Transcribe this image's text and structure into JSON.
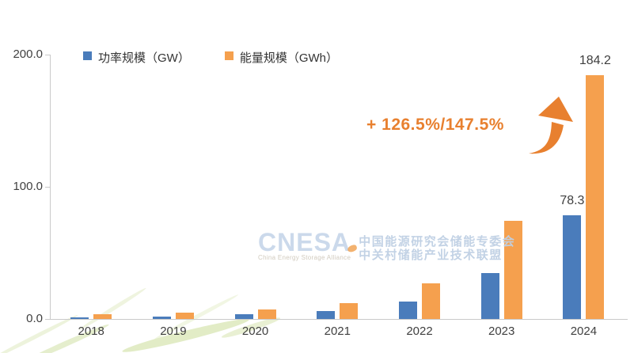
{
  "chart_data": {
    "type": "bar",
    "title": "",
    "categories": [
      "2018",
      "2019",
      "2020",
      "2021",
      "2022",
      "2023",
      "2024"
    ],
    "series": [
      {
        "name": "功率规模（GW）",
        "color": "#4a7cbb",
        "values": [
          1.1,
          2.0,
          3.3,
          5.7,
          13.1,
          34.5,
          78.3
        ]
      },
      {
        "name": "能量规模（GWh）",
        "color": "#f5a04e",
        "values": [
          3.4,
          4.9,
          7.0,
          11.8,
          27.1,
          74.5,
          184.2
        ]
      }
    ],
    "ylim": [
      0,
      200
    ],
    "yticks": [
      {
        "label": "0.0",
        "value": 0
      },
      {
        "label": "100.0",
        "value": 100
      },
      {
        "label": "200.0",
        "value": 200
      }
    ],
    "grid": false,
    "legend_position": "top",
    "point_labels": [
      {
        "series": 0,
        "category": "2024",
        "text": "78.3"
      },
      {
        "series": 1,
        "category": "2024",
        "text": "184.2"
      }
    ],
    "annotation": {
      "text": "+ 126.5%/147.5%",
      "color": "#e8802f"
    }
  },
  "watermark": {
    "logo": "CNESA",
    "tagline": "China Energy Storage Alliance",
    "line1": "中国能源研究会储能专委会",
    "line2": "中关村储能产业技术联盟"
  },
  "colors": {
    "power_blue": "#4a7cbb",
    "energy_orange": "#f5a04e",
    "annotation_orange": "#e8802f",
    "axis_gray": "#c9c9c9",
    "text_dark": "#3f3f3f",
    "watermark_blue": "#c3d3e6",
    "stripe_green": "#dfeac0"
  }
}
